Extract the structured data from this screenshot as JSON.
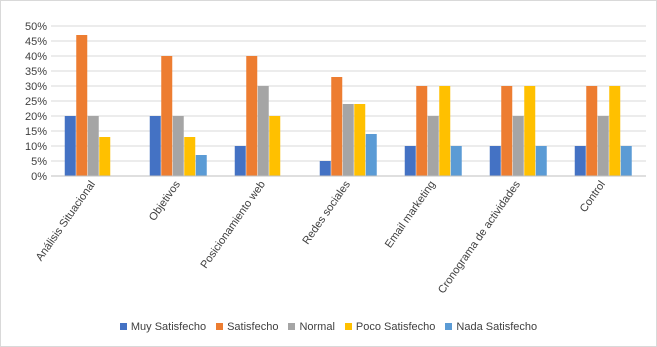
{
  "chart_data": {
    "type": "bar",
    "categories": [
      "Análisis Situacional",
      "Objetivos",
      "Posicionamiento web",
      "Redes sociales",
      "Email marketing",
      "Cronograma de actividades",
      "Control"
    ],
    "series": [
      {
        "name": "Muy Satisfecho",
        "values": [
          20,
          20,
          10,
          5,
          10,
          10,
          10
        ],
        "color": "#4472C4"
      },
      {
        "name": "Satisfecho",
        "values": [
          47,
          40,
          40,
          33,
          30,
          30,
          30
        ],
        "color": "#ED7D31"
      },
      {
        "name": "Normal",
        "values": [
          20,
          20,
          30,
          24,
          20,
          20,
          20
        ],
        "color": "#A5A5A5"
      },
      {
        "name": "Poco Satisfecho",
        "values": [
          13,
          13,
          20,
          24,
          30,
          30,
          30
        ],
        "color": "#FFC000"
      },
      {
        "name": "Nada Satisfecho",
        "values": [
          0,
          7,
          0,
          14,
          10,
          10,
          10
        ],
        "color": "#5B9BD5"
      }
    ],
    "yticks": [
      "0%",
      "5%",
      "10%",
      "15%",
      "20%",
      "25%",
      "30%",
      "35%",
      "40%",
      "45%",
      "50%"
    ],
    "ylim": [
      0,
      50
    ],
    "grid": true,
    "legend": "bottom",
    "title": "",
    "xlabel": "",
    "ylabel": ""
  }
}
